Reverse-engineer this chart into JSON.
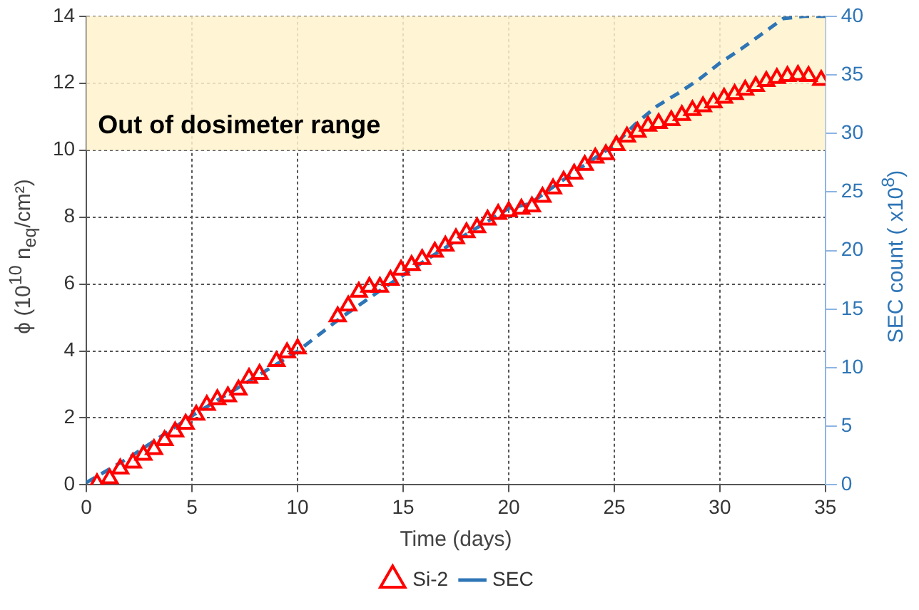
{
  "chart_data": {
    "type": "scatter",
    "xlabel": "Time (days)",
    "ylabel": "ϕ (10$^{10}$ n$_{eq}$/cm²)",
    "y2label": "SEC count ( x10$^{8}$)",
    "xlim": [
      0,
      35
    ],
    "xticks": [
      0,
      5,
      10,
      15,
      20,
      25,
      30,
      35
    ],
    "ylim": [
      0,
      14
    ],
    "yticks": [
      0,
      2,
      4,
      6,
      8,
      10,
      12,
      14
    ],
    "y2lim": [
      0,
      40
    ],
    "y2ticks": [
      0,
      5,
      10,
      15,
      20,
      25,
      30,
      35,
      40
    ],
    "grid": true,
    "legend": "bottom",
    "bands": [
      {
        "axis": "y",
        "from": 10,
        "to": 14,
        "label": "Out of dosimeter range",
        "color": "#fff2cc"
      }
    ],
    "series": [
      {
        "name": "Si-2",
        "color": "#ff0000",
        "marker": "triangle",
        "x": [
          0.5,
          1.1,
          1.6,
          2.2,
          2.7,
          3.2,
          3.7,
          4.2,
          4.7,
          5.2,
          5.7,
          6.2,
          6.7,
          7.2,
          7.7,
          8.2,
          9.0,
          9.5,
          10.0,
          11.9,
          12.4,
          12.9,
          13.4,
          13.9,
          14.4,
          14.9,
          15.4,
          15.9,
          16.5,
          17.0,
          17.5,
          18.0,
          18.5,
          19.0,
          19.5,
          20.0,
          20.6,
          21.1,
          21.6,
          22.1,
          22.6,
          23.1,
          23.6,
          24.1,
          24.6,
          25.1,
          25.6,
          26.1,
          26.6,
          27.1,
          27.7,
          28.2,
          28.7,
          29.2,
          29.7,
          30.2,
          30.7,
          31.2,
          31.7,
          32.2,
          32.7,
          33.2,
          33.7,
          34.2,
          34.8
        ],
        "values": [
          0.04,
          0.19,
          0.48,
          0.66,
          0.89,
          1.06,
          1.33,
          1.59,
          1.82,
          2.09,
          2.38,
          2.55,
          2.64,
          2.84,
          3.19,
          3.31,
          3.69,
          3.95,
          4.07,
          5.03,
          5.35,
          5.76,
          5.91,
          5.91,
          6.12,
          6.42,
          6.56,
          6.74,
          6.96,
          7.14,
          7.36,
          7.54,
          7.69,
          7.92,
          8.09,
          8.17,
          8.24,
          8.31,
          8.6,
          8.85,
          9.08,
          9.29,
          9.55,
          9.77,
          9.87,
          10.14,
          10.4,
          10.54,
          10.72,
          10.8,
          10.89,
          11.04,
          11.19,
          11.3,
          11.42,
          11.56,
          11.67,
          11.8,
          11.91,
          12.06,
          12.15,
          12.21,
          12.24,
          12.21,
          12.09
        ]
      },
      {
        "name": "SEC",
        "type": "line",
        "axis": "y2",
        "color": "#2e75b6",
        "line_style": "dashed",
        "marker": "none",
        "x": [
          0,
          2,
          5,
          8,
          10,
          12,
          14,
          16,
          18,
          20,
          21,
          22,
          24,
          25,
          26,
          27,
          28,
          29,
          30,
          31,
          32,
          33,
          34,
          35
        ],
        "values": [
          0.2,
          2.3,
          5.9,
          9.2,
          11.4,
          14.2,
          16.7,
          19.1,
          21.4,
          23.6,
          24.0,
          25.3,
          27.8,
          29.0,
          30.8,
          32.3,
          33.4,
          34.6,
          36.0,
          37.2,
          38.5,
          39.8,
          40,
          40
        ]
      }
    ]
  }
}
